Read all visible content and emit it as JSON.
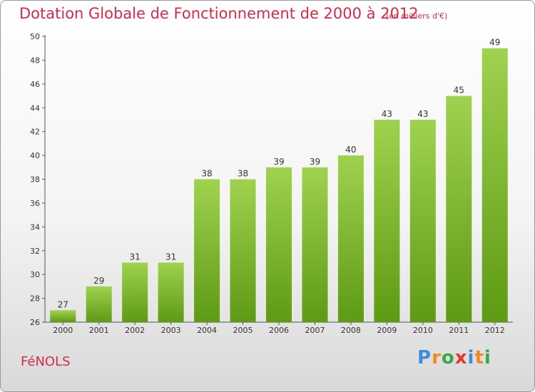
{
  "header": {
    "title": "Dotation Globale de Fonctionnement de 2000 à 2012",
    "subtitle": "(en milliers d'€)"
  },
  "footer": {
    "commune": "FéNOLS",
    "logo_letters": [
      "P",
      "r",
      "o",
      "x",
      "i",
      "t",
      "i"
    ],
    "logo_colors": [
      "#3b8fd9",
      "#f08a1c",
      "#3aa64a",
      "#e23a2a",
      "#3b8fd9",
      "#f08a1c",
      "#3aa64a"
    ]
  },
  "chart_data": {
    "type": "bar",
    "categories": [
      "2000",
      "2001",
      "2002",
      "2003",
      "2004",
      "2005",
      "2006",
      "2007",
      "2008",
      "2009",
      "2010",
      "2011",
      "2012"
    ],
    "values": [
      27,
      29,
      31,
      31,
      38,
      38,
      39,
      39,
      40,
      43,
      43,
      45,
      49
    ],
    "title": "Dotation Globale de Fonctionnement de 2000 à 2012",
    "subtitle": "(en milliers d'€)",
    "ylim": [
      26,
      50
    ],
    "yticks": [
      26,
      28,
      30,
      32,
      34,
      36,
      38,
      40,
      42,
      44,
      46,
      48,
      50
    ],
    "grid": false,
    "bar_color_top": "#9fd24f",
    "bar_color_bottom": "#5e9a14"
  }
}
